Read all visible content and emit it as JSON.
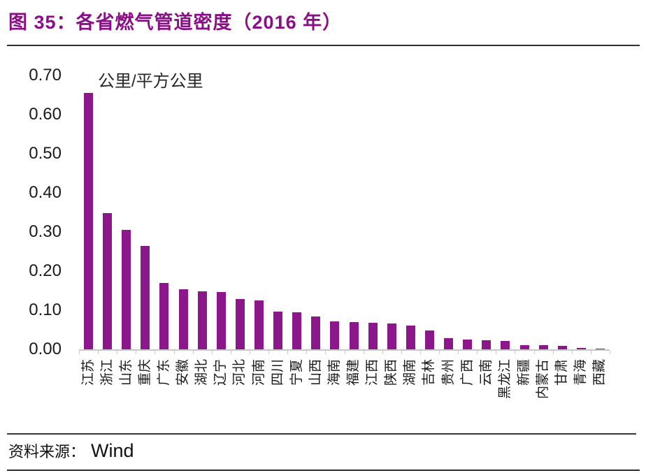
{
  "figure": {
    "title": "图 35：各省燃气管道密度（2016 年）",
    "source_prefix": "资料来源：",
    "source_name": "Wind"
  },
  "colors": {
    "title": "#8A0F87",
    "bar": "#8C178B",
    "axis": "#C9C9C9",
    "text": "#1A1A1A",
    "rule_dark": "#2F2F2F"
  },
  "chart_data": {
    "type": "bar",
    "title": "各省燃气管道密度（2016 年）",
    "unit_label": "公里/平方公里",
    "ylabel": "公里/平方公里",
    "categories": [
      "江苏",
      "浙江",
      "山东",
      "重庆",
      "广东",
      "安徽",
      "湖北",
      "辽宁",
      "河北",
      "河南",
      "四川",
      "宁夏",
      "山西",
      "海南",
      "福建",
      "江西",
      "陕西",
      "湖南",
      "吉林",
      "贵州",
      "广西",
      "云南",
      "黑龙江",
      "新疆",
      "内蒙古",
      "甘肃",
      "青海",
      "西藏"
    ],
    "values": [
      0.655,
      0.348,
      0.305,
      0.264,
      0.169,
      0.154,
      0.149,
      0.146,
      0.128,
      0.125,
      0.096,
      0.095,
      0.084,
      0.072,
      0.07,
      0.068,
      0.066,
      0.061,
      0.048,
      0.029,
      0.025,
      0.024,
      0.022,
      0.011,
      0.01,
      0.009,
      0.004,
      0.002
    ],
    "ylim": [
      0,
      0.7
    ],
    "ytick_step": 0.1,
    "ytick_labels": [
      "0.70",
      "0.60",
      "0.50",
      "0.40",
      "0.30",
      "0.20",
      "0.10",
      "0.00"
    ],
    "grid": false,
    "legend": null,
    "bar_color": "#8C178B"
  }
}
